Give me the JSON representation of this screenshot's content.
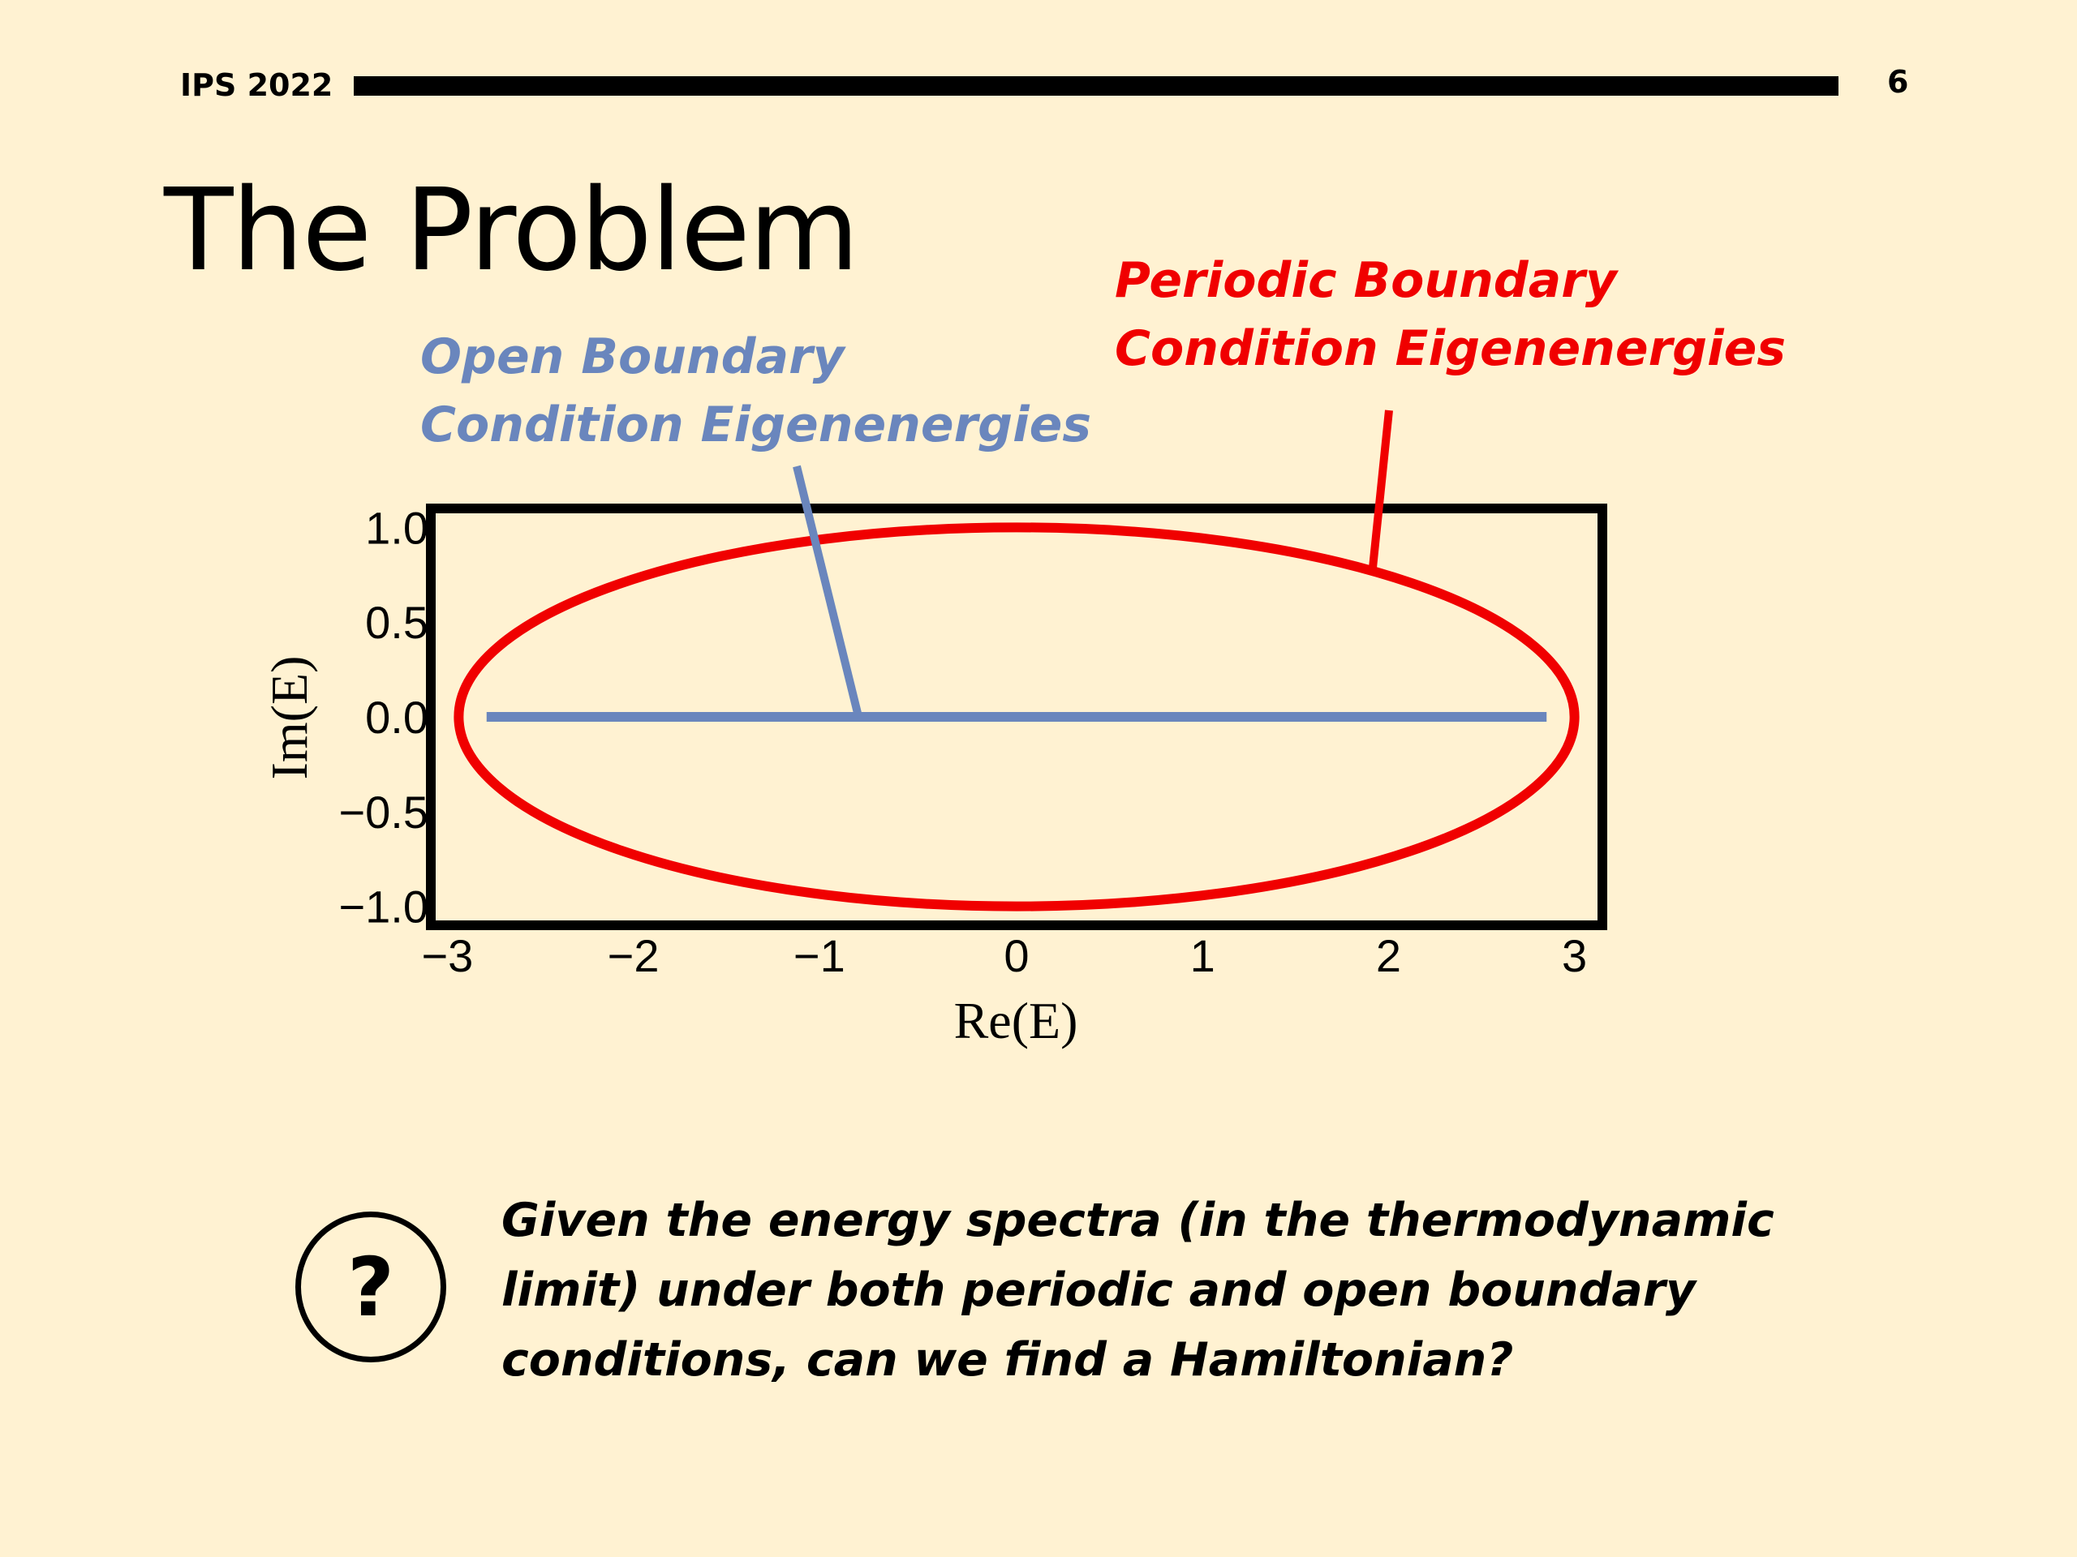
{
  "header": {
    "conference": "IPS 2022",
    "page_number": "6"
  },
  "slide": {
    "title": "The Problem",
    "callouts": {
      "open_boundary": [
        "Open Boundary",
        "Condition Eigenenergies"
      ],
      "periodic_boundary": [
        "Periodic Boundary",
        "Condition Eigenenergies"
      ]
    },
    "question_icon": "?",
    "question_lines": [
      "Given the energy spectra (in the thermodynamic",
      "limit) under both periodic and open boundary",
      "conditions, can we find a Hamiltonian?"
    ]
  },
  "colors": {
    "background": "#fff2d2",
    "open_boundary": "#6a86bd",
    "periodic_boundary": "#f00000"
  },
  "chart_data": {
    "type": "line",
    "xlabel": "Re(E)",
    "ylabel": "Im(E)",
    "xlim": [
      -3.15,
      3.15
    ],
    "ylim": [
      -1.1,
      1.1
    ],
    "x_ticks": [
      -3,
      -2,
      -1,
      0,
      1,
      2,
      3
    ],
    "x_tick_labels": [
      "−3",
      "−2",
      "−1",
      "0",
      "1",
      "2",
      "3"
    ],
    "y_ticks": [
      1.0,
      0.5,
      0.0,
      -0.5,
      -1.0
    ],
    "y_tick_labels": [
      "1.0",
      "0.5",
      "0.0",
      "−0.5",
      "−1.0"
    ],
    "grid": false,
    "series": [
      {
        "name": "Periodic Boundary Condition Eigenenergies",
        "kind": "ellipse",
        "center": [
          0,
          0
        ],
        "semi_axes": [
          3.0,
          1.0
        ],
        "color": "#f00000"
      },
      {
        "name": "Open Boundary Condition Eigenenergies",
        "kind": "segment",
        "x": [
          -2.85,
          2.85
        ],
        "y": [
          0,
          0
        ],
        "color": "#6a86bd"
      }
    ]
  }
}
